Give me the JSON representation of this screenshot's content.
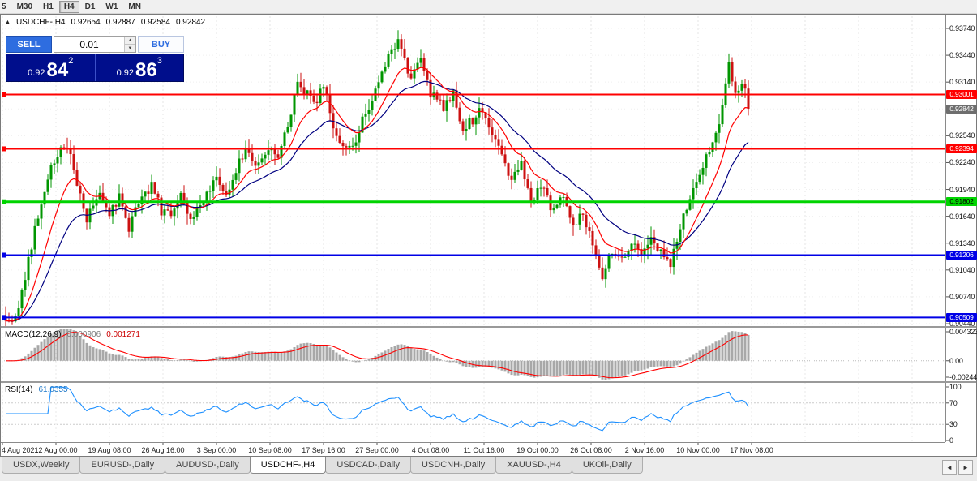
{
  "toolbar": {
    "timeframes": [
      {
        "label": "5",
        "active": false
      },
      {
        "label": "M30",
        "active": false
      },
      {
        "label": "H1",
        "active": false
      },
      {
        "label": "H4",
        "active": true
      },
      {
        "label": "D1",
        "active": false
      },
      {
        "label": "W1",
        "active": false
      },
      {
        "label": "MN",
        "active": false
      }
    ]
  },
  "icons": {
    "collapse": "▲",
    "spin_up": "▲",
    "spin_down": "▼",
    "tab_left": "◄",
    "tab_right": "►"
  },
  "chart_header": {
    "symbol": "USDCHF-,H4",
    "open": "0.92654",
    "high": "0.92887",
    "low": "0.92584",
    "close": "0.92842"
  },
  "trade_panel": {
    "sell_label": "SELL",
    "buy_label": "BUY",
    "volume": "0.01",
    "sell_price": {
      "prefix": "0.92",
      "big": "84",
      "sup": "2"
    },
    "buy_price": {
      "prefix": "0.92",
      "big": "86",
      "sup": "3"
    }
  },
  "price_axis": {
    "top_value": 0.9374,
    "bottom_value": 0.9044,
    "labels": [
      "0.93740",
      "0.93440",
      "0.93140",
      "0.92840",
      "0.92540",
      "0.92240",
      "0.91940",
      "0.91640",
      "0.91340",
      "0.91040",
      "0.90740",
      "0.90440"
    ]
  },
  "levels": [
    {
      "label": "0.93001",
      "value": 0.93001,
      "color": "#ff0000",
      "text_color": "#ffffff",
      "width": 2
    },
    {
      "label": "0.92394",
      "value": 0.92394,
      "color": "#ff0000",
      "text_color": "#ffffff",
      "width": 2
    },
    {
      "label": "0.91802",
      "value": 0.91802,
      "color": "#00d400",
      "text_color": "#000000",
      "width": 3
    },
    {
      "label": "0.91206",
      "value": 0.91206,
      "color": "#0000e6",
      "text_color": "#ffffff",
      "width": 2
    },
    {
      "label": "0.90509",
      "value": 0.90509,
      "color": "#0000e6",
      "text_color": "#ffffff",
      "width": 2
    }
  ],
  "current_price": {
    "label": "0.92842",
    "value": 0.92842,
    "color": "#6e6e6e",
    "text_color": "#ffffff"
  },
  "macd_panel": {
    "name": "MACD(12,26,9)",
    "main_value": "0.000906",
    "signal_value": "0.001271",
    "axis": [
      {
        "label": "0.004323",
        "value": 0.004323
      },
      {
        "label": "0.00",
        "value": 0
      },
      {
        "label": "-0.002447",
        "value": -0.002447
      }
    ]
  },
  "rsi_panel": {
    "name": "RSI(14)",
    "value": "61.0355",
    "axis": [
      {
        "label": "100",
        "value": 100
      },
      {
        "label": "70",
        "value": 70
      },
      {
        "label": "30",
        "value": 30
      },
      {
        "label": "0",
        "value": 0
      }
    ]
  },
  "time_axis": {
    "labels": [
      "4 Aug 2021",
      "12 Aug 00:00",
      "19 Aug 08:00",
      "26 Aug 16:00",
      "3 Sep 00:00",
      "10 Sep 08:00",
      "17 Sep 16:00",
      "27 Sep 00:00",
      "4 Oct 08:00",
      "11 Oct 16:00",
      "19 Oct 00:00",
      "26 Oct 08:00",
      "2 Nov 16:00",
      "10 Nov 00:00",
      "17 Nov 08:00"
    ]
  },
  "tabs": {
    "items": [
      {
        "label": "USDX,Weekly",
        "active": false
      },
      {
        "label": "EURUSD-,Daily",
        "active": false
      },
      {
        "label": "AUDUSD-,Daily",
        "active": false
      },
      {
        "label": "USDCHF-,H4",
        "active": true
      },
      {
        "label": "USDCAD-,Daily",
        "active": false
      },
      {
        "label": "USDCNH-,Daily",
        "active": false
      },
      {
        "label": "XAUUSD-,H4",
        "active": false
      },
      {
        "label": "UKOil-,Daily",
        "active": false
      }
    ]
  },
  "chart_data": {
    "type": "candlestick",
    "symbol": "USDCHF-",
    "period": "H4",
    "bars": 230,
    "price_range": [
      0.904,
      0.9372
    ],
    "last_close": 0.92842,
    "up_color": "#009600",
    "down_color": "#cc1111",
    "ma_fast_color": "#ff0000",
    "ma_slow_color": "#000080",
    "rsi_color": "#1e90ff",
    "macd_hist_color": "#a8a8a8",
    "macd_signal_color": "#ff0000",
    "indicators": {
      "macd": {
        "fast": 12,
        "slow": 26,
        "signal": 9
      },
      "rsi": {
        "period": 14
      },
      "ma_fast": 12,
      "ma_slow": 26
    },
    "waypoints": [
      [
        0,
        0.9052
      ],
      [
        2,
        0.9042
      ],
      [
        4,
        0.906
      ],
      [
        9,
        0.915
      ],
      [
        14,
        0.922
      ],
      [
        17,
        0.9243
      ],
      [
        20,
        0.9235
      ],
      [
        22,
        0.92
      ],
      [
        25,
        0.9158
      ],
      [
        29,
        0.9195
      ],
      [
        32,
        0.9165
      ],
      [
        35,
        0.9185
      ],
      [
        38,
        0.9152
      ],
      [
        41,
        0.9178
      ],
      [
        45,
        0.92
      ],
      [
        48,
        0.917
      ],
      [
        51,
        0.9163
      ],
      [
        54,
        0.9188
      ],
      [
        57,
        0.916
      ],
      [
        61,
        0.9182
      ],
      [
        65,
        0.9205
      ],
      [
        68,
        0.9188
      ],
      [
        72,
        0.9225
      ],
      [
        75,
        0.924
      ],
      [
        77,
        0.9222
      ],
      [
        81,
        0.9243
      ],
      [
        84,
        0.9228
      ],
      [
        87,
        0.9265
      ],
      [
        90,
        0.9315
      ],
      [
        93,
        0.93
      ],
      [
        95,
        0.9288
      ],
      [
        98,
        0.9312
      ],
      [
        101,
        0.9262
      ],
      [
        105,
        0.9237
      ],
      [
        108,
        0.9252
      ],
      [
        111,
        0.928
      ],
      [
        115,
        0.9312
      ],
      [
        119,
        0.935
      ],
      [
        121,
        0.936
      ],
      [
        123,
        0.9338
      ],
      [
        125,
        0.932
      ],
      [
        128,
        0.9336
      ],
      [
        131,
        0.9302
      ],
      [
        135,
        0.9286
      ],
      [
        138,
        0.9302
      ],
      [
        141,
        0.9262
      ],
      [
        144,
        0.9272
      ],
      [
        146,
        0.9288
      ],
      [
        150,
        0.9256
      ],
      [
        153,
        0.9232
      ],
      [
        156,
        0.9206
      ],
      [
        159,
        0.9222
      ],
      [
        162,
        0.9178
      ],
      [
        165,
        0.92
      ],
      [
        168,
        0.9176
      ],
      [
        172,
        0.9188
      ],
      [
        175,
        0.9156
      ],
      [
        178,
        0.9168
      ],
      [
        181,
        0.9132
      ],
      [
        184,
        0.9098
      ],
      [
        187,
        0.9126
      ],
      [
        190,
        0.9114
      ],
      [
        193,
        0.9132
      ],
      [
        196,
        0.912
      ],
      [
        199,
        0.9136
      ],
      [
        202,
        0.9124
      ],
      [
        205,
        0.9108
      ],
      [
        208,
        0.9152
      ],
      [
        212,
        0.9192
      ],
      [
        215,
        0.9218
      ],
      [
        218,
        0.9248
      ],
      [
        220,
        0.9272
      ],
      [
        223,
        0.9332
      ],
      [
        225,
        0.9298
      ],
      [
        228,
        0.9312
      ],
      [
        229,
        0.92842
      ]
    ]
  }
}
